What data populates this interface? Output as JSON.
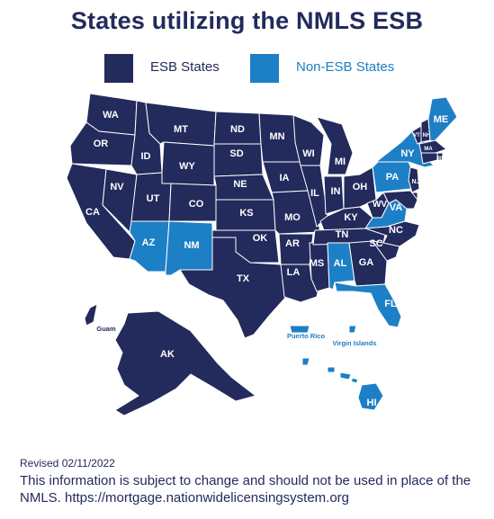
{
  "title": "States utilizing the NMLS ESB",
  "legend": {
    "esb_label": "ESB States",
    "non_esb_label": "Non-ESB States"
  },
  "colors": {
    "esb": "#232a5c",
    "non_esb": "#1d7fc6",
    "border": "#ffffff"
  },
  "states": {
    "WA": "ESB",
    "OR": "ESB",
    "CA": "ESB",
    "NV": "ESB",
    "ID": "ESB",
    "MT": "ESB",
    "WY": "ESB",
    "UT": "ESB",
    "AZ": "Non-ESB",
    "CO": "ESB",
    "NM": "Non-ESB",
    "ND": "ESB",
    "SD": "ESB",
    "NE": "ESB",
    "KS": "ESB",
    "OK": "ESB",
    "TX": "ESB",
    "MN": "ESB",
    "IA": "ESB",
    "MO": "ESB",
    "AR": "ESB",
    "LA": "ESB",
    "WI": "ESB",
    "IL": "ESB",
    "MS": "ESB",
    "MI": "ESB",
    "IN": "ESB",
    "KY": "ESB",
    "TN": "ESB",
    "AL": "Non-ESB",
    "GA": "ESB",
    "FL": "Non-ESB",
    "OH": "ESB",
    "WV": "ESB",
    "VA": "Non-ESB",
    "NC": "ESB",
    "SC": "ESB",
    "PA": "Non-ESB",
    "NY": "Non-ESB",
    "VT": "ESB",
    "NH": "ESB",
    "ME": "Non-ESB",
    "MA": "ESB",
    "RI": "ESB",
    "CT": "ESB",
    "NJ": "ESB",
    "DE": "ESB",
    "MD": "ESB",
    "AK": "ESB",
    "HI": "Non-ESB",
    "Guam": "ESB",
    "Puerto Rico": "Non-ESB",
    "Virgin Islands": "Non-ESB"
  },
  "territory_labels": {
    "guam": "Guam",
    "puerto_rico": "Puerto Rico",
    "virgin_islands": "Virgin Islands"
  },
  "footer": {
    "revised": "Revised 02/11/2022",
    "note": "This information is subject to change and should not be used in place of the NMLS. https://mortgage.nationwidelicensingsystem.org"
  }
}
